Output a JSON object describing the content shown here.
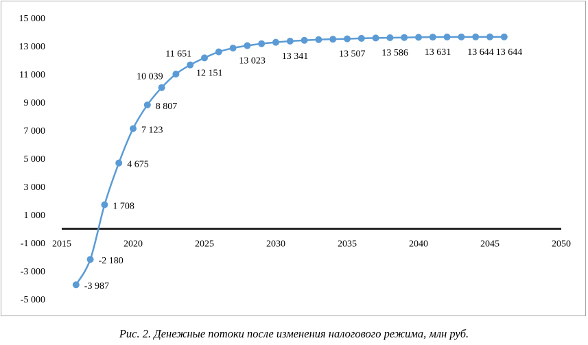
{
  "caption": "Рис. 2. Денежные потоки после изменения налогового режима, млн руб.",
  "chart_data": {
    "type": "line",
    "title": "",
    "xlabel": "",
    "ylabel": "",
    "xlim": [
      2015,
      2050
    ],
    "ylim": [
      -5000,
      15000
    ],
    "x_ticks": [
      2015,
      2020,
      2025,
      2030,
      2035,
      2040,
      2045,
      2050
    ],
    "x_tick_labels": [
      "2015",
      "2020",
      "2025",
      "2030",
      "2035",
      "2040",
      "2045",
      "2050"
    ],
    "y_ticks": [
      -5000,
      -3000,
      -1000,
      1000,
      3000,
      5000,
      7000,
      9000,
      11000,
      13000,
      15000
    ],
    "y_tick_labels": [
      "-5 000",
      "-3 000",
      "-1 000",
      "1 000",
      "3 000",
      "5 000",
      "7 000",
      "9 000",
      "11 000",
      "13 000",
      "15 000"
    ],
    "grid": false,
    "zero_line": true,
    "series_color": "#5b9bd5",
    "zero_line_color": "#262626",
    "series": [
      {
        "name": "",
        "x": [
          2016,
          2017,
          2018,
          2019,
          2020,
          2021,
          2022,
          2023,
          2024,
          2025,
          2026,
          2027,
          2028,
          2029,
          2030,
          2031,
          2032,
          2033,
          2034,
          2035,
          2036,
          2037,
          2038,
          2039,
          2040,
          2041,
          2042,
          2043,
          2044,
          2045,
          2046
        ],
        "y": [
          -3987,
          -2180,
          1708,
          4675,
          7123,
          8807,
          10039,
          11000,
          11651,
          12151,
          12580,
          12850,
          13023,
          13160,
          13260,
          13341,
          13400,
          13450,
          13480,
          13507,
          13540,
          13565,
          13586,
          13600,
          13615,
          13631,
          13638,
          13642,
          13644,
          13644,
          13644
        ]
      }
    ],
    "data_labels": [
      {
        "x": 2016,
        "y": -3987,
        "text": "-3 987"
      },
      {
        "x": 2017,
        "y": -2180,
        "text": "-2 180"
      },
      {
        "x": 2018,
        "y": 1708,
        "text": "1 708"
      },
      {
        "x": 2019,
        "y": 4675,
        "text": "4 675"
      },
      {
        "x": 2020,
        "y": 7123,
        "text": "7 123"
      },
      {
        "x": 2021,
        "y": 8807,
        "text": "8 807"
      },
      {
        "x": 2022,
        "y": 10039,
        "text": "10 039"
      },
      {
        "x": 2024,
        "y": 11651,
        "text": "11 651"
      },
      {
        "x": 2025,
        "y": 12151,
        "text": "12 151"
      },
      {
        "x": 2028,
        "y": 13023,
        "text": "13 023"
      },
      {
        "x": 2031,
        "y": 13341,
        "text": "13 341"
      },
      {
        "x": 2035,
        "y": 13507,
        "text": "13 507"
      },
      {
        "x": 2038,
        "y": 13586,
        "text": "13 586"
      },
      {
        "x": 2041,
        "y": 13631,
        "text": "13 631"
      },
      {
        "x": 2044,
        "y": 13644,
        "text": "13 644"
      },
      {
        "x": 2046,
        "y": 13644,
        "text": "13 644"
      }
    ]
  }
}
